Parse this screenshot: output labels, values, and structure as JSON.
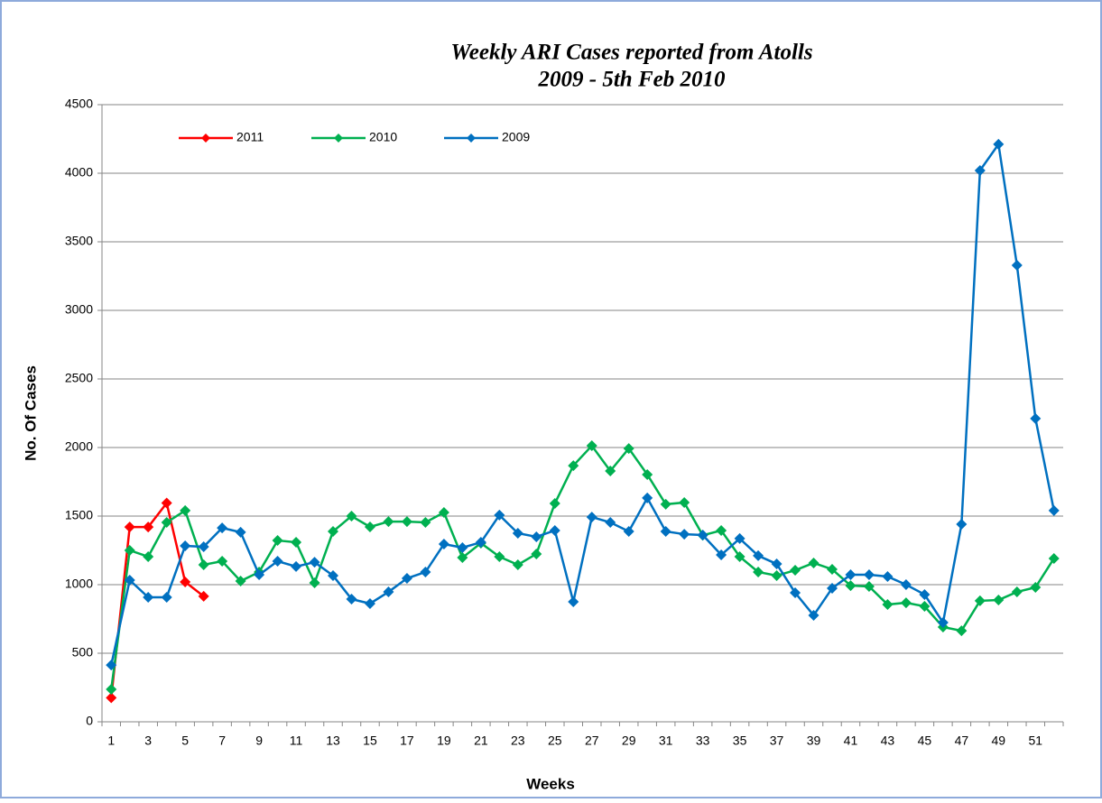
{
  "chart_data": {
    "type": "line",
    "title": "Weekly ARI Cases reported from Atolls",
    "subtitle": "2009 - 5th Feb 2010",
    "x_label": "Weeks",
    "y_label": "No. Of Cases",
    "categories": [
      1,
      null,
      3,
      null,
      5,
      null,
      7,
      null,
      9,
      null,
      11,
      null,
      13,
      null,
      15,
      null,
      17,
      null,
      19,
      null,
      21,
      null,
      23,
      null,
      25,
      null,
      27,
      null,
      29,
      null,
      31,
      null,
      33,
      null,
      35,
      null,
      37,
      null,
      39,
      null,
      41,
      null,
      43,
      null,
      45,
      null,
      47,
      null,
      49,
      null,
      51,
      null
    ],
    "ylim": [
      0,
      4500
    ],
    "yticks": [
      0,
      500,
      1000,
      1500,
      2000,
      2500,
      3000,
      3500,
      4000,
      4500
    ],
    "grid": true,
    "legend": "top-left",
    "series": [
      {
        "name": "2011",
        "color": "#ff0000",
        "values": [
          175,
          1420,
          1420,
          1595,
          1020,
          915,
          null,
          null,
          null,
          null,
          null,
          null,
          null,
          null,
          null,
          null,
          null,
          null,
          null,
          null,
          null,
          null,
          null,
          null,
          null,
          null,
          null,
          null,
          null,
          null,
          null,
          null,
          null,
          null,
          null,
          null,
          null,
          null,
          null,
          null,
          null,
          null,
          null,
          null,
          null,
          null,
          null,
          null,
          null,
          null,
          null,
          null
        ]
      },
      {
        "name": "2010",
        "color": "#00b050",
        "values": [
          237,
          1250,
          1204,
          1454,
          1540,
          1145,
          1171,
          1026,
          1092,
          1322,
          1309,
          1013,
          1388,
          1500,
          1421,
          1460,
          1460,
          1454,
          1526,
          1197,
          1303,
          1204,
          1145,
          1224,
          1592,
          1868,
          2013,
          1829,
          1993,
          1803,
          1586,
          1599,
          1360,
          1395,
          1204,
          1092,
          1066,
          1105,
          1158,
          1112,
          993,
          987,
          855,
          868,
          842,
          691,
          664,
          882,
          888,
          947,
          980,
          1191
        ]
      },
      {
        "name": "2009",
        "color": "#0070c0",
        "values": [
          414,
          1033,
          908,
          908,
          1283,
          1276,
          1414,
          1382,
          1072,
          1171,
          1132,
          1164,
          1066,
          895,
          862,
          947,
          1046,
          1092,
          1296,
          1270,
          1309,
          1507,
          1375,
          1349,
          1395,
          875,
          1493,
          1454,
          1388,
          1632,
          1388,
          1368,
          1362,
          1217,
          1336,
          1211,
          1151,
          941,
          776,
          974,
          1072,
          1072,
          1059,
          1000,
          928,
          724,
          1441,
          4020,
          4211,
          3329,
          2211,
          1540
        ]
      }
    ]
  }
}
